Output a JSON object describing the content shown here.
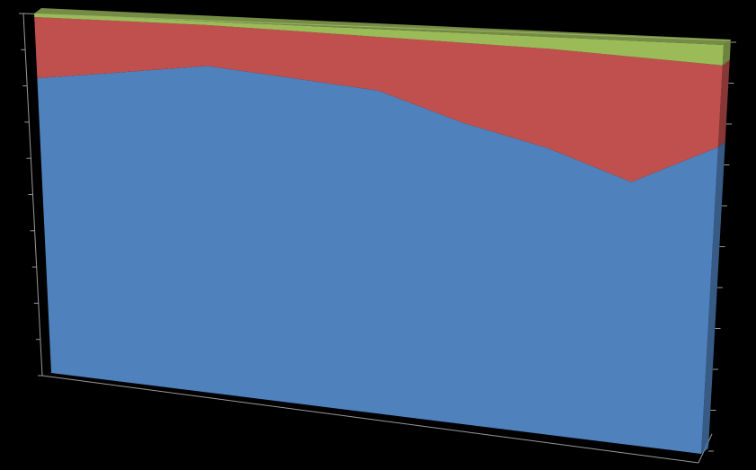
{
  "chart_data": {
    "type": "area",
    "stacked": true,
    "categories": [
      null,
      null,
      null,
      null,
      null,
      null,
      null,
      null,
      null
    ],
    "series": [
      {
        "color": "#4f81bd",
        "values": [
          82,
          85,
          88,
          86,
          84,
          77,
          72,
          65,
          75
        ]
      },
      {
        "color": "#c0504d",
        "values": [
          17,
          14,
          11,
          12.5,
          14,
          20.5,
          25,
          31,
          20
        ]
      },
      {
        "color": "#9bbb59",
        "values": [
          1,
          1,
          1,
          1.5,
          2,
          2.5,
          3,
          4,
          5
        ]
      }
    ],
    "ylim": [
      0,
      100
    ],
    "yticks": [
      0,
      10,
      20,
      30,
      40,
      50,
      60,
      70,
      80,
      90,
      100
    ]
  }
}
